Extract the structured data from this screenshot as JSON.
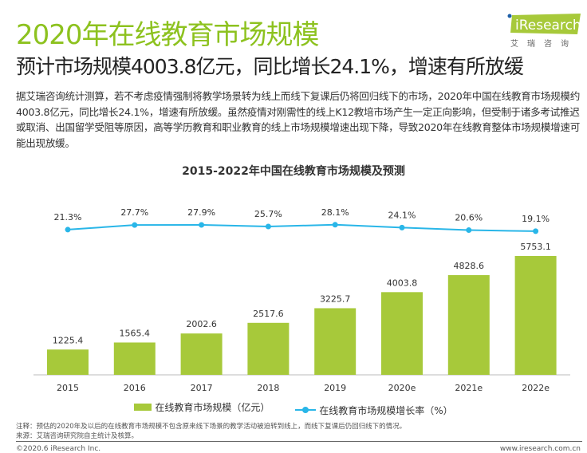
{
  "header": {
    "title": "2020年在线教育市场规模",
    "subtitle": "预计市场规模4003.8亿元，同比增长24.1%，增速有所放缓",
    "logo_text": "iResearch",
    "logo_sub": "艾瑞咨询"
  },
  "body_text": "据艾瑞咨询统计测算，若不考虑疫情强制将教学场景转为线上而线下复课后仍将回归线下的市场，2020年中国在线教育市场规模约4003.8亿元，同比增长24.1%，增速有所放缓。虽然疫情对刚需性的线上K12教培市场产生一定正向影响，但受制于诸多考试推迟或取消、出国留学受阻等原因，高等学历教育和职业教育的线上市场规模增速出现下降，导致2020年在线教育整体市场规模增速可能出现放缓。",
  "chart_data": {
    "type": "bar+line",
    "title": "2015-2022年中国在线教育市场规模及预测",
    "categories": [
      "2015",
      "2016",
      "2017",
      "2018",
      "2019",
      "2020e",
      "2021e",
      "2022e"
    ],
    "series": [
      {
        "name": "在线教育市场规模（亿元）",
        "type": "bar",
        "color": "#a7c93a",
        "values": [
          1225.4,
          1565.4,
          2002.6,
          2517.6,
          3225.7,
          4003.8,
          4828.6,
          5753.1
        ],
        "labels": [
          "1225.4",
          "1565.4",
          "2002.6",
          "2517.6",
          "3225.7",
          "4003.8",
          "4828.6",
          "5753.1"
        ]
      },
      {
        "name": "在线教育市场规模增长率（%）",
        "type": "line",
        "color": "#29b6e8",
        "values": [
          21.3,
          27.7,
          27.9,
          25.7,
          28.1,
          24.1,
          20.6,
          19.1
        ],
        "labels": [
          "21.3%",
          "27.7%",
          "27.9%",
          "25.7%",
          "28.1%",
          "24.1%",
          "20.6%",
          "19.1%"
        ]
      }
    ],
    "legend": "bottom",
    "grid": false
  },
  "footer": {
    "note": "注释：预估的2020年及以后的在线教育市场规模不包含原来线下场景的教学活动被迫转到线上，而线下复课后仍回归线下的情况。",
    "source": "来源：艾瑞咨询研究院自主统计及核算。",
    "copyright": "©2020.6 iResearch Inc.",
    "url": "www.iresearch.com.cn"
  }
}
